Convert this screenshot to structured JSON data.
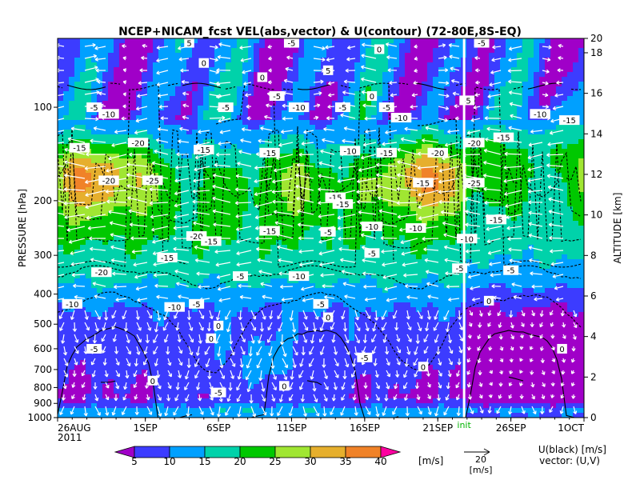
{
  "chart_data": {
    "type": "heatmap",
    "title": "NCEP+NICAM_fcst VEL(abs,vector) & U(contour)   (72-80E,8S-EQ)",
    "ylabel_left": "PRESSURE [hPa]",
    "ylabel_right": "ALTITUDE [km]",
    "x_tick_labels": [
      "26AUG",
      "1SEP",
      "6SEP",
      "11SEP",
      "16SEP",
      "21SEP",
      "26SEP",
      "1OCT"
    ],
    "x_year_label": "2011",
    "x_range_days": [
      0,
      36
    ],
    "x_tick_days": [
      0,
      6,
      11,
      16,
      21,
      26,
      31,
      36
    ],
    "init_day": 27.8,
    "init_label": "init",
    "pressure_ticks": [
      "100",
      "200",
      "300",
      "400",
      "500",
      "600",
      "700",
      "800",
      "900",
      "1000"
    ],
    "pressure_values": [
      100,
      200,
      300,
      400,
      500,
      600,
      700,
      800,
      900,
      1000
    ],
    "pressure_range": [
      60,
      1000
    ],
    "altitude_ticks": [
      "0",
      "2",
      "4",
      "6",
      "8",
      "10",
      "12",
      "14",
      "16",
      "18",
      "20"
    ],
    "altitude_values": [
      0,
      2,
      4,
      6,
      8,
      10,
      12,
      14,
      16,
      18,
      20
    ],
    "colorbar_levels": [
      "5",
      "10",
      "15",
      "20",
      "25",
      "30",
      "35",
      "40"
    ],
    "colorbar_unit": "[m/s]",
    "colorbar_colors": [
      "#a000c8",
      "#3c3cff",
      "#00a0ff",
      "#00d2aa",
      "#00c800",
      "#a0e632",
      "#e6af2d",
      "#f08228",
      "#ff00a0"
    ],
    "vector_ref_value": "20",
    "vector_ref_unit": "[m/s]",
    "legend_line1": "U(black) [m/s]",
    "legend_line2": "vector: (U,V)",
    "contour_labels": [
      {
        "text": "-15",
        "day": 1.5,
        "p": 135
      },
      {
        "text": "-20",
        "day": 5.5,
        "p": 130
      },
      {
        "text": "-15",
        "day": 10,
        "p": 137
      },
      {
        "text": "-15",
        "day": 14.5,
        "p": 140
      },
      {
        "text": "-10",
        "day": 20,
        "p": 138
      },
      {
        "text": "-15",
        "day": 22.5,
        "p": 140
      },
      {
        "text": "-20",
        "day": 26,
        "p": 140
      },
      {
        "text": "-20",
        "day": 28.5,
        "p": 130
      },
      {
        "text": "-15",
        "day": 30.5,
        "p": 125
      },
      {
        "text": "-20",
        "day": 3.5,
        "p": 172
      },
      {
        "text": "-25",
        "day": 6.5,
        "p": 172
      },
      {
        "text": "-15",
        "day": 25,
        "p": 175
      },
      {
        "text": "-25",
        "day": 28.5,
        "p": 175
      },
      {
        "text": "-15",
        "day": 19,
        "p": 195
      },
      {
        "text": "-10",
        "day": 21.5,
        "p": 242
      },
      {
        "text": "-10",
        "day": 24.5,
        "p": 245
      },
      {
        "text": "-15",
        "day": 19.5,
        "p": 205
      },
      {
        "text": "-5",
        "day": 18.5,
        "p": 252
      },
      {
        "text": "-15",
        "day": 30,
        "p": 230
      },
      {
        "text": "-20",
        "day": 9.5,
        "p": 260
      },
      {
        "text": "-15",
        "day": 10.5,
        "p": 270
      },
      {
        "text": "-15",
        "day": 14.5,
        "p": 250
      },
      {
        "text": "-15",
        "day": 7.5,
        "p": 305
      },
      {
        "text": "-10",
        "day": 28,
        "p": 265
      },
      {
        "text": "-5",
        "day": 21.5,
        "p": 295
      },
      {
        "text": "-5",
        "day": 12.5,
        "p": 350
      },
      {
        "text": "-10",
        "day": 16.5,
        "p": 350
      },
      {
        "text": "-20",
        "day": 3,
        "p": 340
      },
      {
        "text": "-5",
        "day": 27.5,
        "p": 330
      },
      {
        "text": "-5",
        "day": 31,
        "p": 335
      },
      {
        "text": "-10",
        "day": 1,
        "p": 430
      },
      {
        "text": "-10",
        "day": 8,
        "p": 440
      },
      {
        "text": "-5",
        "day": 9.5,
        "p": 430
      },
      {
        "text": "-5",
        "day": 18,
        "p": 430
      },
      {
        "text": "0",
        "day": 18.5,
        "p": 475
      },
      {
        "text": "0",
        "day": 29.5,
        "p": 420
      },
      {
        "text": "0",
        "day": 11,
        "p": 505
      },
      {
        "text": "-5",
        "day": 2.5,
        "p": 600
      },
      {
        "text": "0",
        "day": 10.5,
        "p": 555
      },
      {
        "text": "-5",
        "day": 21,
        "p": 640
      },
      {
        "text": "0",
        "day": 25,
        "p": 685
      },
      {
        "text": "0",
        "day": 34.5,
        "p": 600
      },
      {
        "text": "0",
        "day": 6.5,
        "p": 760
      },
      {
        "text": "0",
        "day": 15.5,
        "p": 790
      },
      {
        "text": "-5",
        "day": 11,
        "p": 830
      },
      {
        "text": "-5",
        "day": 2.5,
        "p": 100
      },
      {
        "text": "-10",
        "day": 3.5,
        "p": 105
      },
      {
        "text": "-5",
        "day": 11.5,
        "p": 100
      },
      {
        "text": "-10",
        "day": 16.5,
        "p": 100
      },
      {
        "text": "-5",
        "day": 19.5,
        "p": 100
      },
      {
        "text": "-5",
        "day": 22.5,
        "p": 100
      },
      {
        "text": "-10",
        "day": 23.5,
        "p": 108
      },
      {
        "text": "-10",
        "day": 33,
        "p": 105
      },
      {
        "text": "-15",
        "day": 35,
        "p": 110
      },
      {
        "text": "-5",
        "day": 28,
        "p": 95
      },
      {
        "text": "0",
        "day": 14,
        "p": 80
      },
      {
        "text": "-5",
        "day": 15,
        "p": 92
      },
      {
        "text": "0",
        "day": 21.5,
        "p": 92
      },
      {
        "text": "-5",
        "day": 16,
        "p": 62
      },
      {
        "text": "0",
        "day": 22,
        "p": 65
      },
      {
        "text": "5",
        "day": 9,
        "p": 62
      },
      {
        "text": "0",
        "day": 10,
        "p": 72
      },
      {
        "text": "-5",
        "day": 29,
        "p": 62
      },
      {
        "text": "5",
        "day": 18.5,
        "p": 76
      }
    ]
  }
}
